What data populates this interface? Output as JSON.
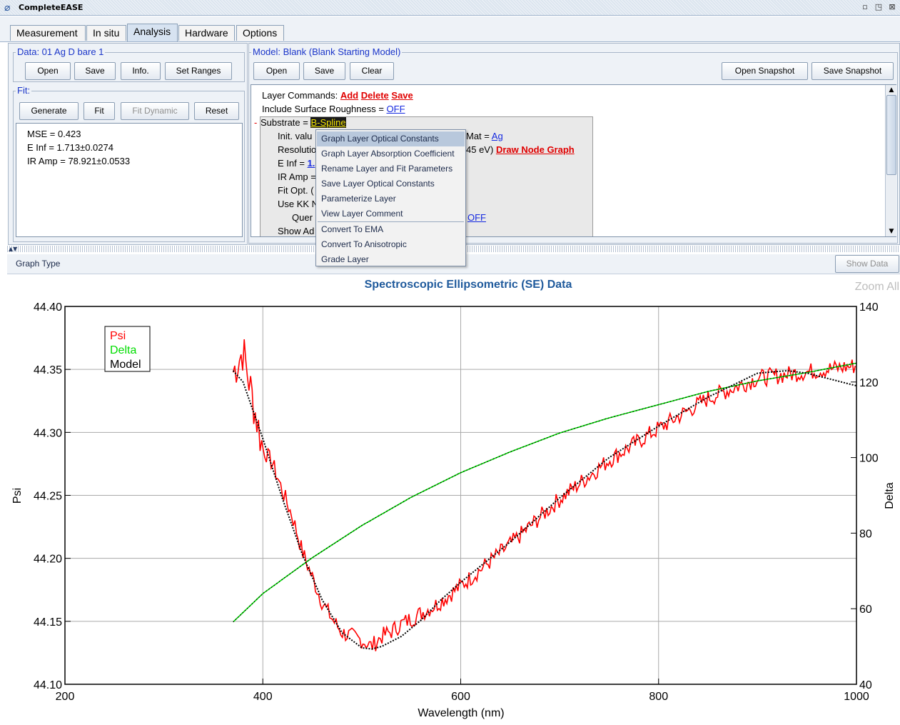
{
  "window": {
    "title": "CompleteEASE",
    "icon": "app-logo-icon"
  },
  "tabs": [
    {
      "label": "Measurement"
    },
    {
      "label": "In situ"
    },
    {
      "label": "Analysis",
      "active": true
    },
    {
      "label": "Hardware"
    },
    {
      "label": "Options"
    }
  ],
  "data_panel": {
    "title": "Data: 01 Ag D bare 1",
    "buttons": {
      "open": "Open",
      "save": "Save",
      "info": "Info.",
      "set_ranges": "Set Ranges"
    }
  },
  "fit_panel": {
    "title": "Fit:",
    "buttons": {
      "generate": "Generate",
      "fit": "Fit",
      "fit_dynamic": "Fit Dynamic",
      "reset": "Reset"
    },
    "results": [
      "MSE = 0.423",
      "E Inf = 1.713±0.0274",
      "IR Amp = 78.921±0.0533"
    ]
  },
  "model_panel": {
    "title": "Model: Blank (Blank Starting Model)",
    "buttons": {
      "open": "Open",
      "save": "Save",
      "clear": "Clear",
      "open_snapshot": "Open Snapshot",
      "save_snapshot": "Save Snapshot"
    },
    "layer_commands_label": "Layer Commands:",
    "layer_commands": {
      "add": "Add",
      "delete": "Delete",
      "save": "Save"
    },
    "roughness_label": "Include Surface Roughness = ",
    "roughness_value": "OFF",
    "substrate_label": "Substrate = ",
    "substrate_value": "B-Spline",
    "lines": {
      "init": "Init. valu",
      "mat": "Mat = ",
      "mat_value": "Ag",
      "resolution": "Resolutio",
      "resolution_tail": "45 eV)",
      "draw_node_graph": "Draw Node Graph",
      "einf": "E Inf = ",
      "einf_value": "1.",
      "iramp": "IR Amp =",
      "fitopt": "Fit Opt. (",
      "usekk": "Use KK N",
      "quer": "Quer",
      "quer_value": "OFF",
      "showad": "Show Ad"
    }
  },
  "context_menu": {
    "items": [
      "Graph Layer Optical Constants",
      "Graph Layer Absorption Coefficient",
      "Rename Layer and Fit Parameters",
      "Save Layer Optical Constants",
      "Parameterize Layer",
      "View Layer Comment",
      "Convert To EMA",
      "Convert To Anisotropic",
      "Grade Layer"
    ]
  },
  "graph_bar": {
    "label": "Graph Type",
    "show_data": "Show Data",
    "zoom_all": "Zoom All"
  },
  "chart_data": {
    "type": "line",
    "title": "Spectroscopic Ellipsometric (SE) Data",
    "xlabel": "Wavelength (nm)",
    "ylabel": "Psi",
    "y2label": "Delta",
    "xlim": [
      200,
      1000
    ],
    "ylim": [
      44.1,
      44.4
    ],
    "y2lim": [
      40,
      140
    ],
    "xticks": [
      "200",
      "400",
      "600",
      "800",
      "1000"
    ],
    "yticks": [
      "44.10",
      "44.15",
      "44.20",
      "44.25",
      "44.30",
      "44.35",
      "44.40"
    ],
    "y2ticks": [
      "40",
      "60",
      "80",
      "100",
      "120",
      "140"
    ],
    "grid": true,
    "legend_position": "top-left",
    "series": [
      {
        "name": "Psi",
        "color": "#ff0000",
        "axis": "left",
        "style": "noisy",
        "x": [
          370,
          380,
          390,
          400,
          410,
          420,
          430,
          440,
          450,
          460,
          470,
          480,
          490,
          500,
          510,
          520,
          530,
          540,
          550,
          575,
          600,
          650,
          700,
          750,
          800,
          850,
          900,
          950,
          1000
        ],
        "values": [
          44.348,
          44.365,
          44.325,
          44.287,
          44.275,
          44.253,
          44.233,
          44.205,
          44.185,
          44.165,
          44.152,
          44.141,
          44.138,
          44.135,
          44.13,
          44.138,
          44.142,
          44.148,
          44.152,
          44.163,
          44.178,
          44.211,
          44.247,
          44.278,
          44.303,
          44.327,
          44.343,
          44.348,
          44.353
        ]
      },
      {
        "name": "Delta",
        "color": "#00dd00",
        "axis": "right",
        "x": [
          370,
          400,
          450,
          500,
          550,
          600,
          650,
          700,
          750,
          800,
          850,
          900,
          950,
          1000
        ],
        "values": [
          56.5,
          64.0,
          73.5,
          82.0,
          89.5,
          96.0,
          101.5,
          106.5,
          110.5,
          114.0,
          117.5,
          120.3,
          122.5,
          125.0
        ]
      },
      {
        "name": "Model",
        "color": "#000000",
        "axis": "left",
        "style": "dotted",
        "x": [
          370,
          380,
          400,
          420,
          440,
          460,
          480,
          500,
          510,
          520,
          540,
          560,
          580,
          600,
          650,
          700,
          750,
          800,
          850,
          900,
          930,
          950,
          975,
          1000
        ],
        "values": [
          44.349,
          44.34,
          44.295,
          44.247,
          44.203,
          44.167,
          44.141,
          44.129,
          44.128,
          44.13,
          44.138,
          44.151,
          44.167,
          44.181,
          44.213,
          44.248,
          44.28,
          44.305,
          44.328,
          44.347,
          44.349,
          44.347,
          44.342,
          44.337
        ]
      }
    ]
  }
}
